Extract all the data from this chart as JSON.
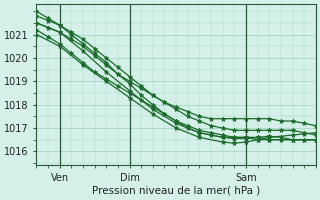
{
  "background_color": "#d4f0e8",
  "grid_color": "#a8d8c8",
  "line_color": "#1a6b2a",
  "marker_color": "#1a6b2a",
  "xlabel": "Pression niveau de la mer( hPa )",
  "ylim": [
    1015.4,
    1022.3
  ],
  "xlim": [
    0,
    48
  ],
  "yticks": [
    1016,
    1017,
    1018,
    1019,
    1020,
    1021
  ],
  "xtick_positions": [
    4,
    16,
    36
  ],
  "xtick_labels": [
    "Ven",
    "Dim",
    "Sam"
  ],
  "vlines": [
    4,
    16,
    36
  ],
  "series": [
    {
      "points": [
        [
          0,
          1021.8
        ],
        [
          2,
          1021.6
        ],
        [
          4,
          1021.4
        ],
        [
          6,
          1021.1
        ],
        [
          8,
          1020.8
        ],
        [
          10,
          1020.4
        ],
        [
          12,
          1020.0
        ],
        [
          14,
          1019.6
        ],
        [
          16,
          1019.2
        ],
        [
          18,
          1018.8
        ],
        [
          20,
          1018.4
        ],
        [
          22,
          1018.1
        ],
        [
          24,
          1017.9
        ],
        [
          26,
          1017.7
        ],
        [
          28,
          1017.5
        ],
        [
          30,
          1017.4
        ],
        [
          32,
          1017.4
        ],
        [
          34,
          1017.4
        ],
        [
          36,
          1017.4
        ],
        [
          38,
          1017.4
        ],
        [
          40,
          1017.4
        ],
        [
          42,
          1017.3
        ],
        [
          44,
          1017.3
        ],
        [
          46,
          1017.2
        ],
        [
          48,
          1017.1
        ]
      ]
    },
    {
      "points": [
        [
          0,
          1021.5
        ],
        [
          2,
          1021.3
        ],
        [
          4,
          1021.1
        ],
        [
          6,
          1020.8
        ],
        [
          8,
          1020.5
        ],
        [
          10,
          1020.1
        ],
        [
          12,
          1019.7
        ],
        [
          14,
          1019.3
        ],
        [
          16,
          1019.0
        ],
        [
          18,
          1018.7
        ],
        [
          20,
          1018.4
        ],
        [
          22,
          1018.1
        ],
        [
          24,
          1017.8
        ],
        [
          26,
          1017.5
        ],
        [
          28,
          1017.3
        ],
        [
          30,
          1017.1
        ],
        [
          32,
          1017.0
        ],
        [
          34,
          1016.9
        ],
        [
          36,
          1016.9
        ],
        [
          38,
          1016.9
        ],
        [
          40,
          1016.9
        ],
        [
          42,
          1016.9
        ],
        [
          44,
          1016.9
        ],
        [
          46,
          1016.8
        ],
        [
          48,
          1016.7
        ]
      ]
    },
    {
      "points": [
        [
          0,
          1021.2
        ],
        [
          2,
          1020.9
        ],
        [
          4,
          1020.6
        ],
        [
          6,
          1020.2
        ],
        [
          8,
          1019.8
        ],
        [
          10,
          1019.4
        ],
        [
          12,
          1019.1
        ],
        [
          14,
          1018.8
        ],
        [
          16,
          1018.5
        ],
        [
          18,
          1018.2
        ],
        [
          20,
          1017.9
        ],
        [
          22,
          1017.6
        ],
        [
          24,
          1017.3
        ],
        [
          26,
          1017.1
        ],
        [
          28,
          1016.9
        ],
        [
          30,
          1016.8
        ],
        [
          32,
          1016.7
        ],
        [
          34,
          1016.6
        ],
        [
          36,
          1016.6
        ],
        [
          38,
          1016.6
        ],
        [
          40,
          1016.5
        ],
        [
          42,
          1016.5
        ],
        [
          44,
          1016.5
        ],
        [
          46,
          1016.5
        ],
        [
          48,
          1016.5
        ]
      ]
    },
    {
      "points": [
        [
          0,
          1022.0
        ],
        [
          2,
          1021.7
        ],
        [
          4,
          1021.4
        ],
        [
          6,
          1021.0
        ],
        [
          8,
          1020.6
        ],
        [
          10,
          1020.2
        ],
        [
          12,
          1019.8
        ],
        [
          14,
          1019.3
        ],
        [
          16,
          1018.9
        ],
        [
          18,
          1018.4
        ],
        [
          20,
          1018.0
        ],
        [
          22,
          1017.6
        ],
        [
          24,
          1017.3
        ],
        [
          26,
          1017.0
        ],
        [
          28,
          1016.8
        ],
        [
          30,
          1016.7
        ],
        [
          32,
          1016.6
        ],
        [
          34,
          1016.55
        ],
        [
          36,
          1016.55
        ],
        [
          38,
          1016.6
        ],
        [
          40,
          1016.65
        ],
        [
          42,
          1016.6
        ],
        [
          44,
          1016.5
        ],
        [
          46,
          1016.5
        ],
        [
          48,
          1016.5
        ]
      ]
    }
  ],
  "series2_extra": [
    {
      "points": [
        [
          0,
          1021.5
        ],
        [
          4,
          1021.1
        ],
        [
          8,
          1020.3
        ],
        [
          12,
          1019.4
        ],
        [
          16,
          1018.6
        ],
        [
          20,
          1017.8
        ],
        [
          24,
          1017.2
        ],
        [
          28,
          1016.8
        ],
        [
          32,
          1016.6
        ],
        [
          36,
          1016.6
        ],
        [
          38,
          1016.5
        ],
        [
          40,
          1016.5
        ],
        [
          44,
          1016.5
        ],
        [
          48,
          1016.5
        ]
      ]
    },
    {
      "points": [
        [
          0,
          1021.0
        ],
        [
          4,
          1020.5
        ],
        [
          8,
          1019.7
        ],
        [
          12,
          1019.0
        ],
        [
          16,
          1018.3
        ],
        [
          20,
          1017.6
        ],
        [
          24,
          1017.0
        ],
        [
          28,
          1016.6
        ],
        [
          32,
          1016.4
        ],
        [
          34,
          1016.35
        ],
        [
          36,
          1016.4
        ],
        [
          38,
          1016.5
        ],
        [
          40,
          1016.6
        ],
        [
          44,
          1016.7
        ],
        [
          46,
          1016.75
        ],
        [
          48,
          1016.8
        ]
      ]
    }
  ]
}
